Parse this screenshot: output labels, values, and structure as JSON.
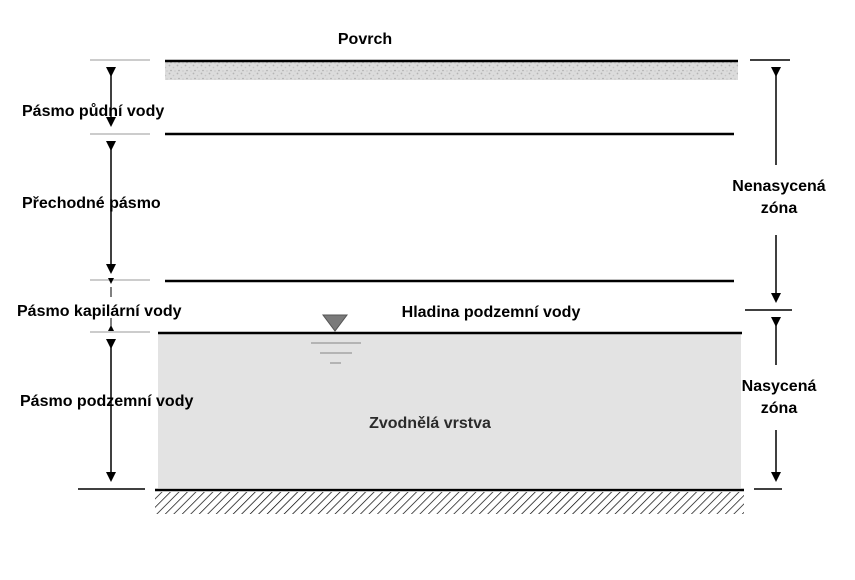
{
  "labels": {
    "surface": "Povrch",
    "soil_water_zone": "Pásmo půdní vody",
    "intermediate_zone": "Přechodné pásmo",
    "capillary_zone": "Pásmo kapilární vody",
    "groundwater_zone": "Pásmo podzemní vody",
    "water_table": "Hladina podzemní vody",
    "aquifer": "Zvodnělá vrstva",
    "unsaturated_zone_line1": "Nenasycená",
    "unsaturated_zone_line2": "zóna",
    "saturated_zone_line1": "Nasycená",
    "saturated_zone_line2": "zóna"
  },
  "colors": {
    "line": "#000000",
    "aquifer_fill": "#e3e3e3",
    "surface_texture": "#cfcfcf",
    "water_table_marker": "#7a7a7a",
    "zone_guide": "#999999"
  },
  "icons": {
    "water_table_marker": "inverted-triangle-icon",
    "bedrock": "hatched-bedrock"
  }
}
